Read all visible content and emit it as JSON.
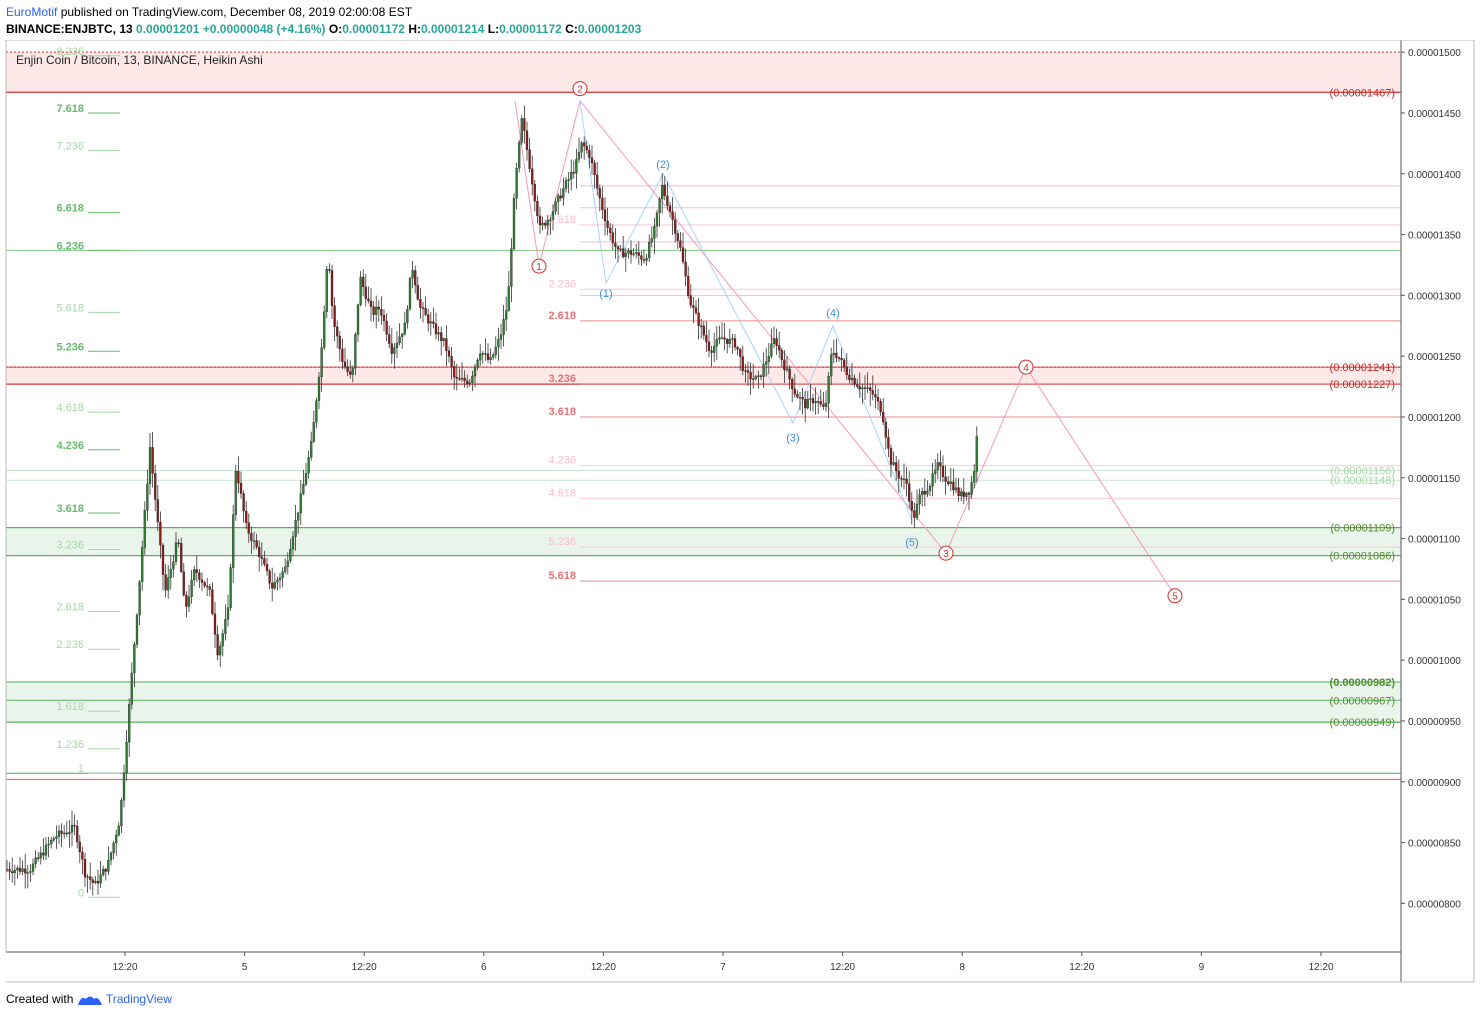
{
  "header": {
    "author": "EuroMotif",
    "published": " published on TradingView.com, December 08, 2019 02:00:08 EST",
    "symbol": "BINANCE:ENJBTC, 13",
    "price": "0.00001201",
    "change": "+0.00000048 (+4.16%)",
    "o_label": "O:",
    "o_value": "0.00001172",
    "h_label": "H:",
    "h_value": "0.00001214",
    "l_label": "L:",
    "l_value": "0.00001172",
    "c_label": "C:",
    "c_value": "0.00001203"
  },
  "footer": {
    "created_with": "Created with",
    "brand": "TradingView"
  },
  "colors": {
    "up": "#2e7d32",
    "down": "#8b1a1a",
    "resist": "#d32f2f",
    "support": "#4caf50",
    "wave_blue": "#3d8ed8",
    "wave_red": "#d32f2f",
    "axis": "#555555"
  },
  "chart_data": {
    "type": "candlestick",
    "title": "Enjin Coin / Bitcoin, 13, BINANCE, Heikin Ashi",
    "ylim": [
      7.6e-06,
      1.51e-05
    ],
    "y_ticks": [
      1.5e-05,
      1.45e-05,
      1.4e-05,
      1.35e-05,
      1.3e-05,
      1.25e-05,
      1.2e-05,
      1.15e-05,
      1.1e-05,
      1.05e-05,
      1e-05,
      9.5e-06,
      9e-06,
      8.5e-06,
      8e-06
    ],
    "y_tick_labels": [
      "0.00001500",
      "0.00001450",
      "0.00001400",
      "0.00001350",
      "0.00001300",
      "0.00001250",
      "0.00001200",
      "0.00001150",
      "0.00001100",
      "0.00001050",
      "0.00001000",
      "0.00000950",
      "0.00000900",
      "0.00000850",
      "0.00000800"
    ],
    "x_ticks": [
      "12:20",
      "5",
      "12:20",
      "6",
      "12:20",
      "7",
      "12:20",
      "8",
      "12:20",
      "9",
      "12:20"
    ],
    "price_path": [
      [
        0,
        8.28
      ],
      [
        30,
        8.28
      ],
      [
        55,
        8.55
      ],
      [
        75,
        8.62
      ],
      [
        85,
        8.25
      ],
      [
        95,
        8.15
      ],
      [
        108,
        8.32
      ],
      [
        120,
        8.7
      ],
      [
        130,
        9.7
      ],
      [
        140,
        10.7
      ],
      [
        150,
        11.75
      ],
      [
        158,
        11.1
      ],
      [
        165,
        10.55
      ],
      [
        178,
        11.0
      ],
      [
        185,
        10.4
      ],
      [
        195,
        10.75
      ],
      [
        210,
        10.55
      ],
      [
        218,
        10.05
      ],
      [
        228,
        10.4
      ],
      [
        236,
        11.6
      ],
      [
        246,
        11.1
      ],
      [
        258,
        10.9
      ],
      [
        272,
        10.6
      ],
      [
        285,
        10.75
      ],
      [
        300,
        11.3
      ],
      [
        312,
        11.8
      ],
      [
        322,
        12.6
      ],
      [
        328,
        13.4
      ],
      [
        333,
        12.8
      ],
      [
        343,
        12.45
      ],
      [
        352,
        12.3
      ],
      [
        360,
        13.15
      ],
      [
        372,
        12.85
      ],
      [
        380,
        12.9
      ],
      [
        392,
        12.55
      ],
      [
        405,
        12.75
      ],
      [
        412,
        13.25
      ],
      [
        420,
        12.9
      ],
      [
        432,
        12.75
      ],
      [
        445,
        12.6
      ],
      [
        455,
        12.3
      ],
      [
        470,
        12.3
      ],
      [
        480,
        12.55
      ],
      [
        490,
        12.45
      ],
      [
        500,
        12.65
      ],
      [
        508,
        12.95
      ],
      [
        515,
        13.9
      ],
      [
        522,
        14.45
      ],
      [
        530,
        14.05
      ],
      [
        540,
        13.55
      ],
      [
        550,
        13.65
      ],
      [
        565,
        13.9
      ],
      [
        575,
        14.05
      ],
      [
        582,
        14.25
      ],
      [
        590,
        14.15
      ],
      [
        598,
        13.85
      ],
      [
        608,
        13.55
      ],
      [
        618,
        13.35
      ],
      [
        632,
        13.35
      ],
      [
        645,
        13.3
      ],
      [
        655,
        13.55
      ],
      [
        662,
        13.9
      ],
      [
        670,
        13.7
      ],
      [
        680,
        13.4
      ],
      [
        690,
        12.95
      ],
      [
        700,
        12.75
      ],
      [
        710,
        12.55
      ],
      [
        722,
        12.65
      ],
      [
        736,
        12.6
      ],
      [
        745,
        12.35
      ],
      [
        758,
        12.3
      ],
      [
        768,
        12.5
      ],
      [
        775,
        12.65
      ],
      [
        783,
        12.45
      ],
      [
        795,
        12.2
      ],
      [
        805,
        12.1
      ],
      [
        815,
        12.15
      ],
      [
        825,
        12.05
      ],
      [
        832,
        12.55
      ],
      [
        838,
        12.5
      ],
      [
        848,
        12.35
      ],
      [
        860,
        12.25
      ],
      [
        872,
        12.2
      ],
      [
        882,
        12.05
      ],
      [
        890,
        11.65
      ],
      [
        900,
        11.5
      ],
      [
        907,
        11.45
      ],
      [
        913,
        11.15
      ],
      [
        920,
        11.35
      ],
      [
        930,
        11.45
      ],
      [
        938,
        11.6
      ],
      [
        945,
        11.5
      ],
      [
        952,
        11.45
      ],
      [
        960,
        11.35
      ],
      [
        970,
        11.4
      ],
      [
        974,
        11.55
      ],
      [
        977,
        11.85
      ],
      [
        979,
        12.03
      ]
    ],
    "fib_left": [
      {
        "label": "8.236",
        "price": 14.97,
        "major": false
      },
      {
        "label": "7.618",
        "price": 14.5,
        "major": true
      },
      {
        "label": "7.236",
        "price": 14.19,
        "major": false
      },
      {
        "label": "6.618",
        "price": 13.68,
        "major": true
      },
      {
        "label": "6.236",
        "price": 13.37,
        "major": true
      },
      {
        "label": "5.618",
        "price": 12.86,
        "major": false
      },
      {
        "label": "5.236",
        "price": 12.54,
        "major": true
      },
      {
        "label": "4.618",
        "price": 12.04,
        "major": false
      },
      {
        "label": "4.236",
        "price": 11.73,
        "major": true
      },
      {
        "label": "3.618",
        "price": 11.21,
        "major": true
      },
      {
        "label": "3.236",
        "price": 10.91,
        "major": false
      },
      {
        "label": "2.618",
        "price": 10.4,
        "major": false
      },
      {
        "label": "2.236",
        "price": 10.09,
        "major": false
      },
      {
        "label": "1.618",
        "price": 9.58,
        "major": false
      },
      {
        "label": "1.236",
        "price": 9.27,
        "major": false
      },
      {
        "label": "1",
        "price": 9.07,
        "major": false
      },
      {
        "label": "0",
        "price": 8.05,
        "major": false
      }
    ],
    "fib_mid": [
      {
        "label": "1.618",
        "price": 13.58,
        "major": false
      },
      {
        "label": "2.236",
        "price": 13.05,
        "major": false
      },
      {
        "label": "2.618",
        "price": 12.79,
        "major": true
      },
      {
        "label": "3.236",
        "price": 12.27,
        "major": true
      },
      {
        "label": "3.618",
        "price": 12.0,
        "major": true
      },
      {
        "label": "4.236",
        "price": 11.6,
        "major": false
      },
      {
        "label": "4.618",
        "price": 11.33,
        "major": false
      },
      {
        "label": "5.236",
        "price": 10.93,
        "major": false
      },
      {
        "label": "5.618",
        "price": 10.65,
        "major": true
      }
    ],
    "level_labels": [
      {
        "text": "(0.00001467)",
        "price": 14.67,
        "kind": "red"
      },
      {
        "text": "(0.00001241)",
        "price": 12.41,
        "kind": "red"
      },
      {
        "text": "(0.00001227)",
        "price": 12.27,
        "kind": "red"
      },
      {
        "text": "(0.00001156)",
        "price": 11.56,
        "kind": "green-faint"
      },
      {
        "text": "(0.00001148)",
        "price": 11.48,
        "kind": "green-faint"
      },
      {
        "text": "(0.00001109)",
        "price": 11.09,
        "kind": "green"
      },
      {
        "text": "(0.00001086)",
        "price": 10.86,
        "kind": "green"
      },
      {
        "text": "(0.00000982)",
        "price": 9.82,
        "kind": "green-bold"
      },
      {
        "text": "(0.00000967)",
        "price": 9.67,
        "kind": "green"
      },
      {
        "text": "(0.00000949)",
        "price": 9.49,
        "kind": "green"
      }
    ],
    "zones": [
      {
        "from": 14.67,
        "to": 15.0,
        "kind": "red"
      },
      {
        "from": 12.27,
        "to": 12.41,
        "kind": "red"
      },
      {
        "from": 10.86,
        "to": 11.09,
        "kind": "green"
      },
      {
        "from": 9.49,
        "to": 9.82,
        "kind": "green"
      }
    ],
    "waves_blue": [
      {
        "label": "(1)",
        "x": 606,
        "price": 13.02
      },
      {
        "label": "(2)",
        "x": 663,
        "price": 14.08
      },
      {
        "label": "(3)",
        "x": 793,
        "price": 11.83
      },
      {
        "label": "(4)",
        "x": 833,
        "price": 12.86
      },
      {
        "label": "(5)",
        "x": 912,
        "price": 10.97
      }
    ],
    "waves_red": [
      {
        "label": "1",
        "x": 539,
        "price": 13.24
      },
      {
        "label": "2",
        "x": 580,
        "price": 14.7
      },
      {
        "label": "3",
        "x": 946,
        "price": 10.88
      },
      {
        "label": "4",
        "x": 1026,
        "price": 12.41
      },
      {
        "label": "5",
        "x": 1175,
        "price": 10.53
      }
    ]
  }
}
